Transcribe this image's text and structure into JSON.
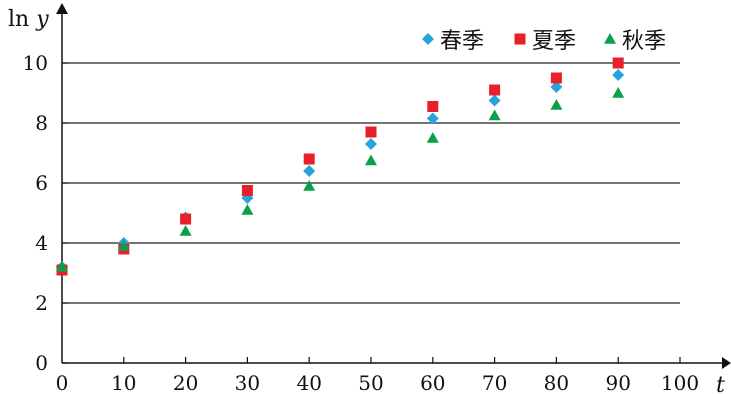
{
  "chart_data": {
    "type": "scatter",
    "title": "",
    "xlabel": "t",
    "ylabel_main": "ln",
    "ylabel_var": "y",
    "xlim": [
      0,
      100
    ],
    "ylim": [
      0,
      10
    ],
    "x_ticks": [
      0,
      10,
      20,
      30,
      40,
      50,
      60,
      70,
      80,
      90,
      100
    ],
    "y_ticks": [
      0,
      2,
      4,
      6,
      8,
      10
    ],
    "grid": "horizontal",
    "legend_position": "top-right",
    "series": [
      {
        "name": "春季",
        "marker": "diamond",
        "color": "#29a3e0",
        "x": [
          0,
          10,
          20,
          30,
          40,
          50,
          60,
          70,
          80,
          90
        ],
        "y": [
          3.2,
          4.0,
          4.85,
          5.5,
          6.4,
          7.3,
          8.15,
          8.75,
          9.2,
          9.6
        ]
      },
      {
        "name": "夏季",
        "marker": "square",
        "color": "#e8202a",
        "x": [
          0,
          10,
          20,
          30,
          40,
          50,
          60,
          70,
          80,
          90
        ],
        "y": [
          3.1,
          3.8,
          4.8,
          5.75,
          6.8,
          7.7,
          8.55,
          9.1,
          9.5,
          10.0
        ]
      },
      {
        "name": "秋季",
        "marker": "triangle",
        "color": "#0aa04a",
        "x": [
          0,
          10,
          20,
          30,
          40,
          50,
          60,
          70,
          80,
          90
        ],
        "y": [
          3.2,
          3.9,
          4.4,
          5.1,
          5.9,
          6.75,
          7.5,
          8.25,
          8.6,
          9.0
        ]
      }
    ]
  }
}
